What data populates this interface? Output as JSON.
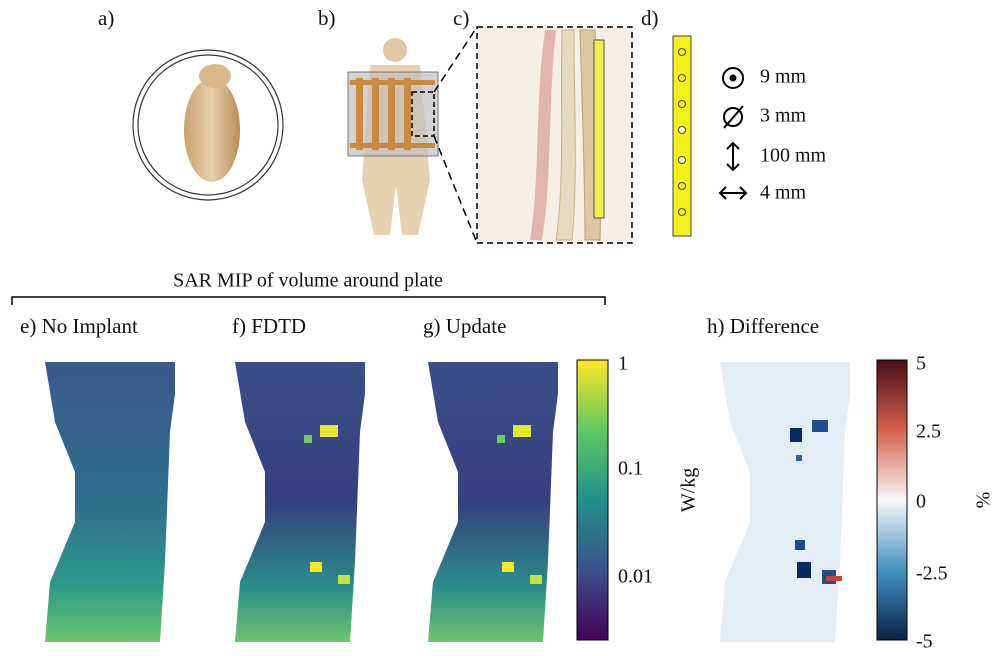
{
  "figure": {
    "panels": {
      "a": "a)",
      "b": "b)",
      "c": "c)",
      "d": "d)",
      "e": "e) No Implant",
      "f": "f)  FDTD",
      "g": "g)  Update",
      "h": "h) Difference"
    },
    "specs": [
      "9 mm",
      "3 mm",
      "100 mm",
      "4 mm"
    ],
    "bracket_title": "SAR MIP of volume around plate",
    "sar_colorbar": {
      "ticks": [
        "1",
        "0.1",
        "0.01"
      ],
      "label": "W/kg"
    },
    "diff_colorbar": {
      "ticks": [
        "5",
        "2.5",
        "0",
        "-2.5",
        "-5"
      ],
      "label": "%"
    }
  }
}
